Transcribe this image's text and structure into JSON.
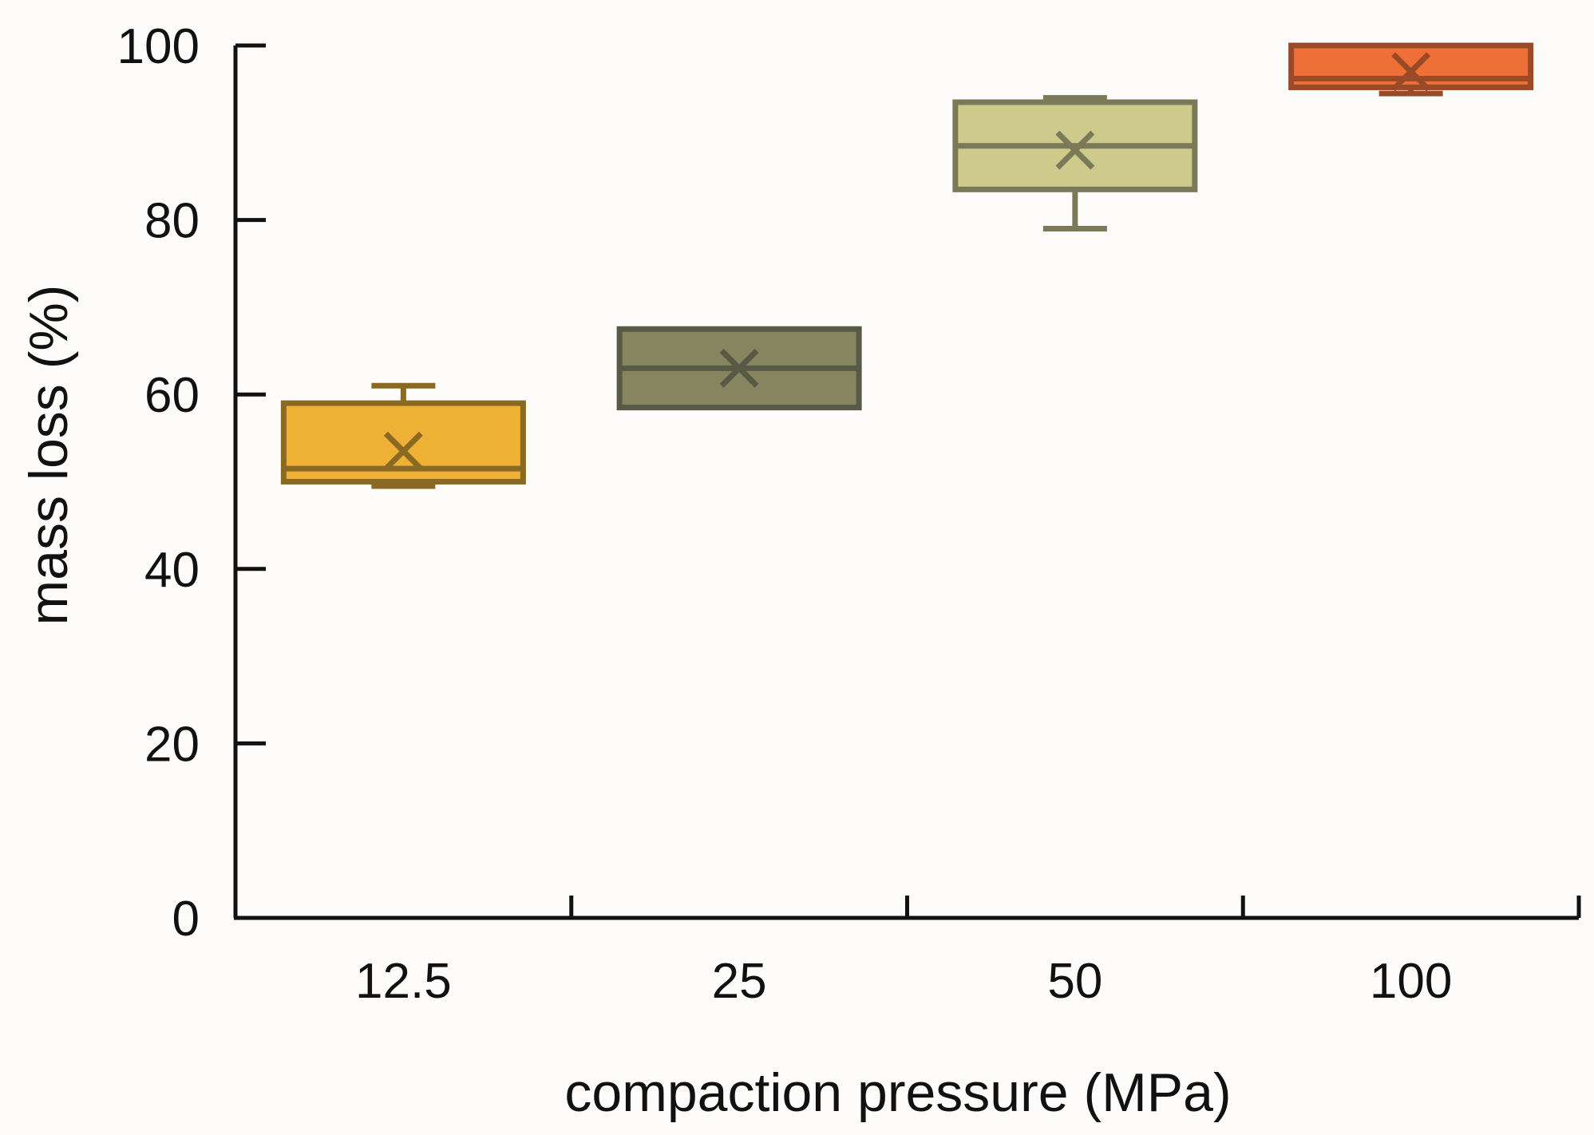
{
  "chart_data": {
    "type": "box",
    "title": "",
    "xlabel": "compaction pressure (MPa)",
    "ylabel": "mass loss (%)",
    "ylim": [
      0,
      100
    ],
    "yticks": [
      "0",
      "20",
      "40",
      "60",
      "80",
      "100"
    ],
    "categories": [
      "12.5",
      "25",
      "50",
      "100"
    ],
    "boxes": [
      {
        "category": "12.5",
        "min": 49.5,
        "q1": 50,
        "median": 51.5,
        "mean": 53.5,
        "q3": 59,
        "max": 61,
        "fill": "#eeb135",
        "stroke": "#8a6a22"
      },
      {
        "category": "25",
        "min": 58.5,
        "q1": 58.5,
        "median": 63,
        "mean": 63,
        "q3": 67.5,
        "max": 67.5,
        "fill": "#878460",
        "stroke": "#575a44"
      },
      {
        "category": "50",
        "min": 79,
        "q1": 83.5,
        "median": 88.5,
        "mean": 88,
        "q3": 93.5,
        "max": 94,
        "fill": "#cdca8b",
        "stroke": "#7a7a58"
      },
      {
        "category": "100",
        "min": 94.5,
        "q1": 95.2,
        "median": 96.2,
        "mean": 97,
        "q3": 100,
        "max": 100,
        "fill": "#ee7038",
        "stroke": "#9a4a27"
      }
    ],
    "grid": false,
    "legend": "none"
  }
}
